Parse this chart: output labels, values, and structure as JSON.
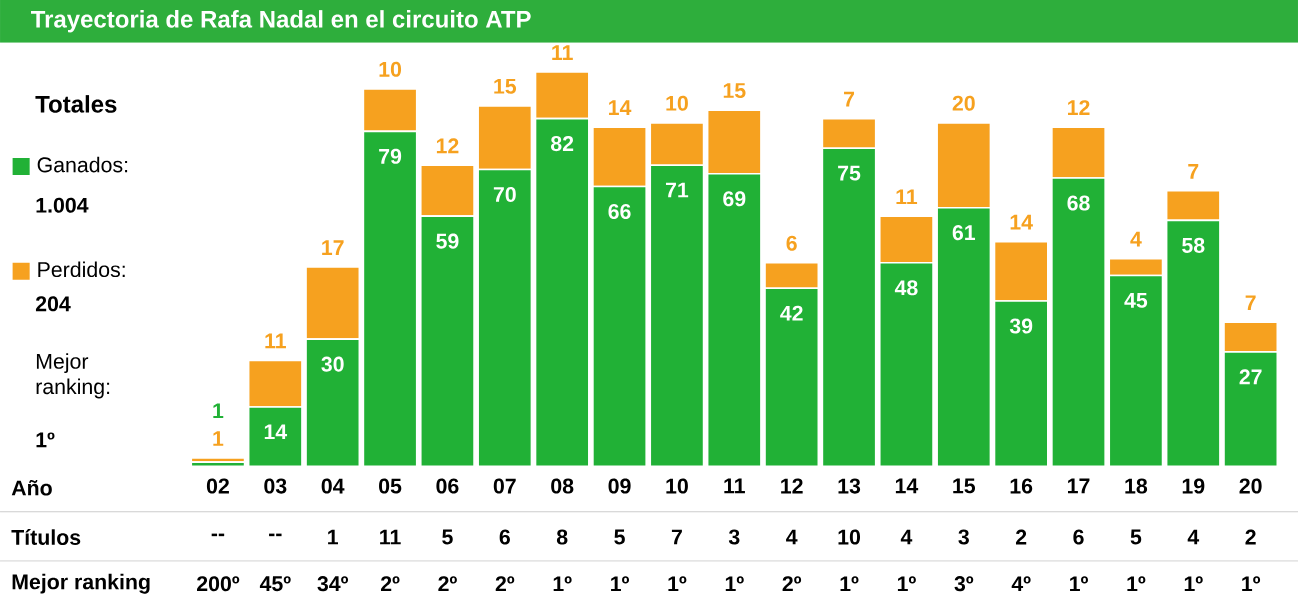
{
  "chart_data": {
    "type": "bar",
    "stacked": true,
    "data_labels": true,
    "legend": "left",
    "title": "Trayectoria de Rafa Nadal en el circuito ATP",
    "categories": [
      "02",
      "03",
      "04",
      "05",
      "06",
      "07",
      "08",
      "09",
      "10",
      "11",
      "12",
      "13",
      "14",
      "15",
      "16",
      "17",
      "18",
      "19",
      "20"
    ],
    "series": [
      {
        "name": "Ganados:",
        "color": "#21b136",
        "values": [
          1,
          14,
          30,
          79,
          59,
          70,
          82,
          66,
          71,
          69,
          42,
          75,
          48,
          61,
          39,
          68,
          45,
          58,
          27
        ]
      },
      {
        "name": "Perdidos:",
        "color": "#f6a11f",
        "values": [
          1,
          11,
          17,
          10,
          12,
          15,
          11,
          14,
          10,
          15,
          6,
          7,
          11,
          20,
          14,
          12,
          4,
          7,
          7
        ]
      }
    ],
    "annotations": [
      "Totales",
      "1.004",
      "204",
      "Mejor ranking:",
      "1º",
      "Año",
      "Títulos",
      "Mejor ranking",
      "--",
      "--",
      "1",
      "11",
      "5",
      "6",
      "8",
      "5",
      "7",
      "3",
      "4",
      "10",
      "4",
      "3",
      "2",
      "6",
      "5",
      "4",
      "2",
      "200º",
      "45º",
      "34º",
      "2º",
      "2º",
      "2º",
      "1º",
      "1º",
      "1º",
      "1º",
      "2º",
      "1º",
      "1º",
      "3º",
      "4º",
      "1º",
      "1º",
      "1º",
      "1º"
    ]
  }
}
